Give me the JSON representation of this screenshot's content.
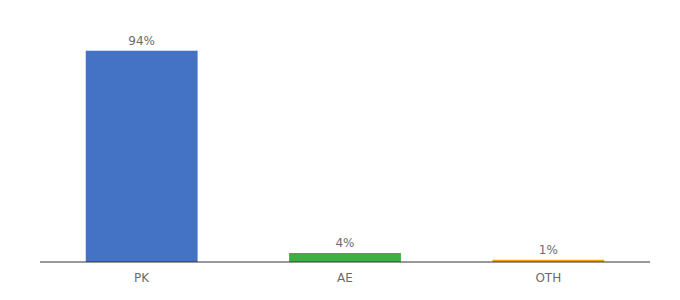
{
  "chart_data": {
    "type": "bar",
    "categories": [
      "PK",
      "AE",
      "OTH"
    ],
    "values": [
      94,
      4,
      1
    ],
    "value_labels": [
      "94%",
      "4%",
      "1%"
    ],
    "data_labels": true,
    "colors": [
      "#4472c4",
      "#3cb043",
      "#f0a500"
    ],
    "ylim": [
      0,
      105
    ],
    "tick_labels": "x",
    "grid": false
  }
}
